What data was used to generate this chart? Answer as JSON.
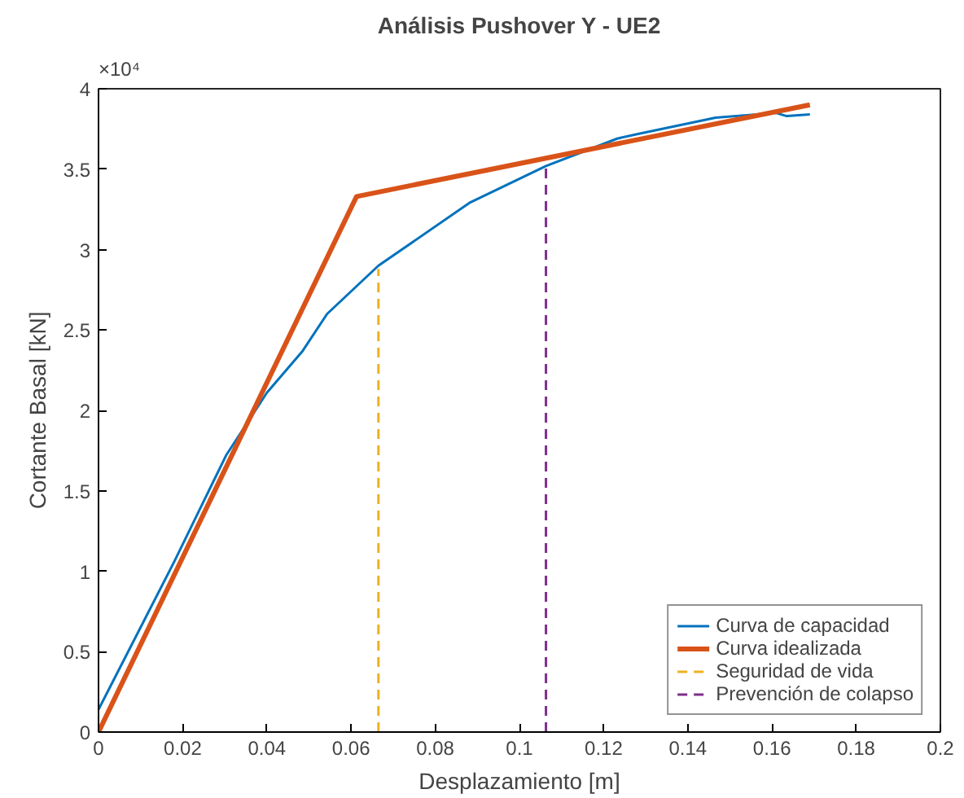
{
  "chart_data": {
    "type": "line",
    "title": "Análisis Pushover Y - UE2",
    "xlabel": "Desplazamiento [m]",
    "ylabel": "Cortante Basal [kN]",
    "xlim": [
      0,
      0.2
    ],
    "xticks": [
      0,
      0.02,
      0.04,
      0.06,
      0.08,
      0.1,
      0.12,
      0.14,
      0.16,
      0.18,
      0.2
    ],
    "ylim": [
      0,
      4
    ],
    "yticks": [
      0,
      0.5,
      1,
      1.5,
      2,
      2.5,
      3,
      3.5,
      4
    ],
    "annotations": [
      "×10⁴"
    ],
    "grid": false,
    "legend": "bottom right",
    "marker": "none",
    "series": [
      {
        "name": "Curva de capacidad",
        "color": "#0072bd",
        "line_style": "solid",
        "x": [
          0,
          0.018,
          0.0303,
          0.04,
          0.0485,
          0.0543,
          0.0665,
          0.0881,
          0.1063,
          0.1232,
          0.1284,
          0.1466,
          0.1609,
          0.1635,
          0.169
        ],
        "values": [
          0.14,
          1.06,
          1.72,
          2.11,
          2.37,
          2.6,
          2.9,
          3.29,
          3.52,
          3.69,
          3.72,
          3.82,
          3.85,
          3.83,
          3.84
        ]
      },
      {
        "name": "Curva idealizada",
        "color": "#d95319",
        "line_style": "solid",
        "x": [
          0,
          0.0613,
          0.169
        ],
        "values": [
          0,
          3.33,
          3.9
        ]
      },
      {
        "name": "Seguridad de vida",
        "color": "#edb120",
        "line_style": "dashed",
        "x": [
          0.0665,
          0.0665
        ],
        "values": [
          0,
          2.88
        ]
      },
      {
        "name": "Prevención de colapso",
        "color": "#7e2f8e",
        "line_style": "dashed",
        "x": [
          0.1063,
          0.1063
        ],
        "values": [
          0,
          3.52
        ]
      }
    ]
  }
}
